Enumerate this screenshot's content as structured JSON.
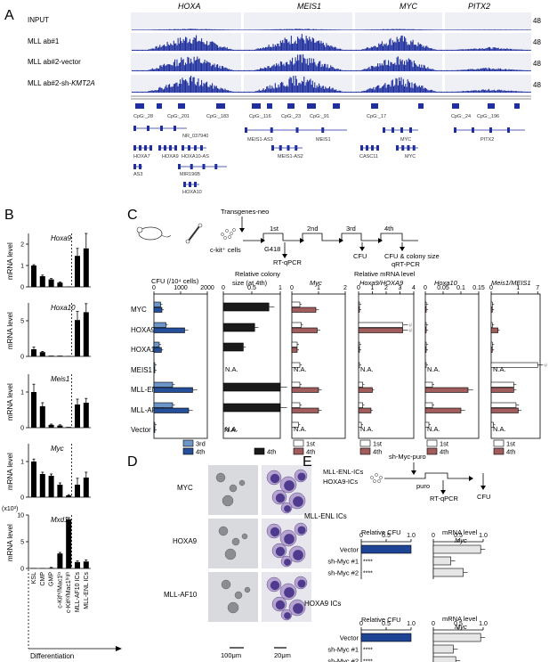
{
  "panel_letters": [
    "A",
    "B",
    "C",
    "D",
    "E"
  ],
  "A": {
    "genes": [
      "HOXA",
      "MEIS1",
      "MYC",
      "PITX2"
    ],
    "tracks": [
      "INPUT",
      "MLL ab#1",
      "MLL ab#2-vector",
      "MLL ab#2-sh-",
      "KMT2A"
    ],
    "scale": "48",
    "cpg": [
      "CpG:_28",
      "CpG:_201",
      "CpG:_183",
      "CpG:_116",
      "CpG:_23",
      "CpG:_91",
      "CpG:_17",
      "CpG:_24",
      "CpG:_196"
    ],
    "transcripts": [
      "NR_037940",
      "MEIS1-AS3",
      "MEIS1",
      "MYC",
      "PITX2",
      "HOXA7",
      "HOXA9",
      "HOXA10-AS",
      "MEIS1-AS2",
      "CASC11",
      "MYC",
      "AS3",
      "MIR196B",
      "HOXA10"
    ]
  },
  "B": {
    "ylabel": "mRNA level",
    "genes": [
      "Hoxa9",
      "Hoxa10",
      "Meis1",
      "Myc",
      "Mxd1"
    ],
    "exponent": "(x10³)",
    "categories": [
      "KSL",
      "CMP",
      "GMP",
      "c-Kit^hi/Mac1^lo",
      "c-Kit^lo/Mac1^high",
      "MLL-AF10 ICs",
      "MLL-ENL ICs"
    ],
    "xaxis": "Differentiation"
  },
  "C": {
    "steps": [
      "Transgenes-neo",
      "c-kit⁺ cells",
      "1st",
      "2nd",
      "3rd",
      "4th",
      "G418",
      "RT-qPCR",
      "CFU",
      "CFU & colony size",
      "qRT-PCR"
    ],
    "rows": [
      "MYC",
      "HOXA9",
      "HOXA10",
      "MEIS1",
      "MLL-ENL",
      "MLL-AF10",
      "Vector"
    ],
    "na": "N.A.",
    "legend": [
      "3rd",
      "4th",
      "1st"
    ],
    "headers": [
      "CFU (/10⁴ cells)",
      "Relative colony",
      "size (at 4th)",
      "Relative mRNA level",
      "Myc",
      "Hoxa9/HOXA9",
      "Hoxa10",
      "Meis1/MEIS1"
    ],
    "hash": "#"
  },
  "D": {
    "rows": [
      "MYC",
      "HOXA9",
      "MLL-AF10"
    ],
    "scales": [
      "100μm",
      "20μm"
    ]
  },
  "E": {
    "schema": [
      "MLL-ENL-ICs",
      "HOXA9-ICs",
      "sh-Myc-puro",
      "puro",
      "RT-qPCR",
      "CFU"
    ],
    "groups": [
      "MLL-ENL ICs",
      "HOXA9 ICs"
    ],
    "left_header": "Relative CFU",
    "right_header": [
      "mRNA level",
      "Myc"
    ],
    "rows": [
      "Vector",
      "sh-Myc #1",
      "sh-Myc #2"
    ],
    "stars": "****"
  },
  "chart_data": [
    {
      "type": "bar",
      "title": "Hoxa9",
      "ylabel": "mRNA level",
      "categories": [
        "KSL",
        "CMP",
        "GMP",
        "c-Kit^hi/Mac1^lo",
        "c-Kit^lo/Mac1^high",
        "MLL-AF10 ICs",
        "MLL-ENL ICs"
      ],
      "values": [
        1.0,
        0.5,
        0.35,
        0.2,
        0.02,
        1.45,
        1.8
      ],
      "ylim": [
        0,
        2.5
      ]
    },
    {
      "type": "bar",
      "title": "Hoxa10",
      "ylabel": "mRNA level",
      "categories": [
        "KSL",
        "CMP",
        "GMP",
        "c-Kit^hi/Mac1^lo",
        "c-Kit^lo/Mac1^high",
        "MLL-AF10 ICs",
        "MLL-ENL ICs"
      ],
      "values": [
        1.0,
        0.6,
        0.1,
        0.1,
        0.02,
        5.1,
        6.2
      ],
      "ylim": [
        0,
        7.5
      ]
    },
    {
      "type": "bar",
      "title": "Meis1",
      "ylabel": "mRNA level",
      "categories": [
        "KSL",
        "CMP",
        "GMP",
        "c-Kit^hi/Mac1^lo",
        "c-Kit^lo/Mac1^high",
        "MLL-AF10 ICs",
        "MLL-ENL ICs"
      ],
      "values": [
        1.0,
        0.6,
        0.08,
        0.06,
        0.02,
        0.65,
        0.7
      ],
      "ylim": [
        0,
        1.5
      ]
    },
    {
      "type": "bar",
      "title": "Myc",
      "ylabel": "mRNA level",
      "categories": [
        "KSL",
        "CMP",
        "GMP",
        "c-Kit^hi/Mac1^lo",
        "c-Kit^lo/Mac1^high",
        "MLL-AF10 ICs",
        "MLL-ENL ICs"
      ],
      "values": [
        1.0,
        0.65,
        0.6,
        0.35,
        0.05,
        0.35,
        0.55
      ],
      "ylim": [
        0,
        1.5
      ]
    },
    {
      "type": "bar",
      "title": "Mxd1",
      "ylabel": "mRNA level",
      "categories": [
        "KSL",
        "CMP",
        "GMP",
        "c-Kit^hi/Mac1^lo",
        "c-Kit^lo/Mac1^high",
        "MLL-AF10 ICs",
        "MLL-ENL ICs"
      ],
      "values": [
        0.02,
        0.05,
        0.1,
        2.8,
        9.2,
        1.2,
        1.3
      ],
      "ylim": [
        0,
        10
      ]
    },
    {
      "type": "bar",
      "title": "CFU (/10⁴ cells)",
      "categories": [
        "MYC",
        "HOXA9",
        "HOXA10",
        "MEIS1",
        "MLL-ENL",
        "MLL-AF10",
        "Vector"
      ],
      "series": [
        {
          "name": "3rd",
          "values": [
            250,
            450,
            200,
            20,
            700,
            700,
            0
          ]
        },
        {
          "name": "4th",
          "values": [
            300,
            1150,
            280,
            0,
            1450,
            1300,
            0
          ]
        }
      ],
      "xlim": [
        0,
        2000
      ]
    },
    {
      "type": "bar",
      "title": "Relative colony size (at 4th)",
      "categories": [
        "MYC",
        "HOXA9",
        "HOXA10",
        "MEIS1",
        "MLL-ENL",
        "MLL-AF10",
        "Vector"
      ],
      "series": [
        {
          "name": "4th",
          "values": [
            0.8,
            0.55,
            0.35,
            null,
            1.0,
            1.0,
            null
          ]
        }
      ],
      "xlim": [
        0,
        1
      ]
    },
    {
      "type": "bar",
      "title": "Myc",
      "categories": [
        "MYC",
        "HOXA9",
        "HOXA10",
        "MEIS1",
        "MLL-ENL",
        "MLL-AF10",
        "Vector"
      ],
      "series": [
        {
          "name": "1st",
          "values": [
            0.3,
            0.35,
            0.2,
            0.3,
            0.3,
            0.3,
            0.25
          ]
        },
        {
          "name": "4th",
          "values": [
            0.9,
            0.95,
            0.2,
            null,
            1.0,
            1.0,
            null
          ]
        }
      ],
      "xlim": [
        0,
        2
      ]
    },
    {
      "type": "bar",
      "title": "Hoxa9/HOXA9",
      "categories": [
        "MYC",
        "HOXA9",
        "HOXA10",
        "MEIS1",
        "MLL-ENL",
        "MLL-AF10",
        "Vector"
      ],
      "series": [
        {
          "name": "1st",
          "values": [
            0.05,
            3.5,
            0.05,
            0.05,
            0.3,
            0.3,
            0.2
          ]
        },
        {
          "name": "4th",
          "values": [
            0.05,
            3.5,
            0.05,
            null,
            1.0,
            0.9,
            null
          ]
        }
      ],
      "xlim": [
        0,
        4
      ]
    },
    {
      "type": "bar",
      "title": "Hoxa10",
      "categories": [
        "MYC",
        "HOXA9",
        "HOXA10",
        "MEIS1",
        "MLL-ENL",
        "MLL-AF10",
        "Vector"
      ],
      "series": [
        {
          "name": "1st",
          "values": [
            0,
            0,
            0,
            0,
            0.02,
            0.02,
            0.01
          ]
        },
        {
          "name": "4th",
          "values": [
            0,
            0,
            0,
            null,
            0.12,
            0.1,
            null
          ]
        }
      ],
      "xlim": [
        0,
        0.15
      ]
    },
    {
      "type": "bar",
      "title": "Meis1/MEIS1",
      "categories": [
        "MYC",
        "HOXA9",
        "HOXA10",
        "MEIS1",
        "MLL-ENL",
        "MLL-AF10",
        "Vector"
      ],
      "series": [
        {
          "name": "1st",
          "values": [
            0.05,
            0.05,
            0.05,
            7.0,
            1.0,
            1.1,
            0.1
          ]
        },
        {
          "name": "4th",
          "values": [
            0.05,
            0.3,
            0.05,
            null,
            1.0,
            1.2,
            null
          ]
        }
      ],
      "xlim": [
        0,
        7
      ]
    },
    {
      "type": "bar",
      "title": "MLL-ENL ICs Relative CFU",
      "categories": [
        "Vector",
        "sh-Myc #1",
        "sh-Myc #2"
      ],
      "values": [
        1.0,
        0.0,
        0.0
      ],
      "xlim": [
        0,
        1
      ]
    },
    {
      "type": "bar",
      "title": "MLL-ENL ICs mRNA level Myc",
      "categories": [
        "Vector",
        "sh-Myc #1",
        "sh-Myc #2"
      ],
      "values": [
        0.95,
        0.35,
        0.6
      ],
      "xlim": [
        0,
        1
      ]
    },
    {
      "type": "bar",
      "title": "HOXA9 ICs Relative CFU",
      "categories": [
        "Vector",
        "sh-Myc #1",
        "sh-Myc #2"
      ],
      "values": [
        1.0,
        0.0,
        0.0
      ],
      "xlim": [
        0,
        1
      ]
    },
    {
      "type": "bar",
      "title": "HOXA9 ICs mRNA level Myc",
      "categories": [
        "Vector",
        "sh-Myc #1",
        "sh-Myc #2"
      ],
      "values": [
        0.95,
        0.4,
        0.45
      ],
      "xlim": [
        0,
        1
      ]
    }
  ]
}
